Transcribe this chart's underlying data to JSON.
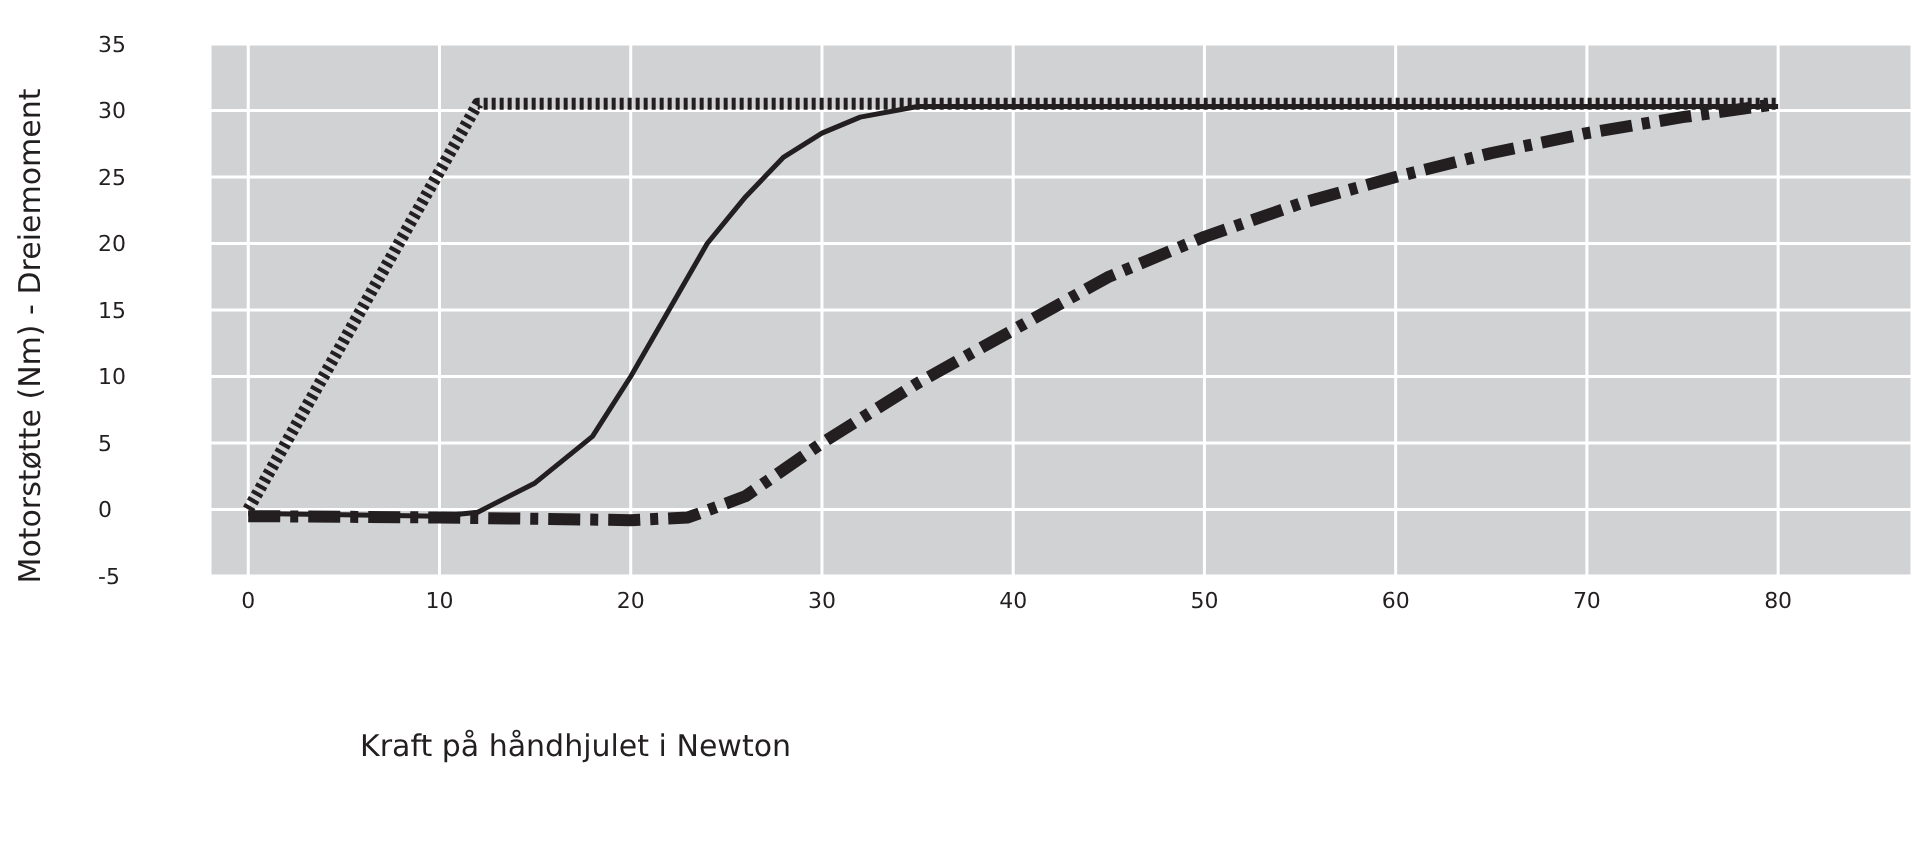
{
  "chart_data": {
    "type": "line",
    "xlabel": "Kraft på håndhjulet i Newton",
    "ylabel": "Motorstøtte (Nm) - Dreiemoment",
    "xlim": [
      -2,
      87
    ],
    "xticks": [
      0,
      10,
      20,
      30,
      40,
      50,
      60,
      70,
      80
    ],
    "ylim": [
      -5,
      35
    ],
    "yticks": [
      -5,
      0,
      5,
      10,
      15,
      20,
      25,
      30,
      35
    ],
    "grid": true,
    "marker": "none",
    "series": [
      {
        "color": "#231f20",
        "line_style": "dotted",
        "x": [
          0,
          12,
          80
        ],
        "values": [
          0,
          30.5,
          30.5
        ]
      },
      {
        "color": "#231f20",
        "line_style": "solid",
        "x": [
          0,
          5,
          10,
          12,
          15,
          18,
          20,
          22,
          24,
          26,
          28,
          30,
          32,
          35,
          80
        ],
        "values": [
          -0.3,
          -0.4,
          -0.5,
          -0.2,
          2,
          5.5,
          10,
          15,
          20,
          23.5,
          26.5,
          28.3,
          29.5,
          30.3,
          30.3
        ]
      },
      {
        "color": "#231f20",
        "line_style": "dashdot",
        "x": [
          0,
          10,
          20,
          23,
          26,
          30,
          35,
          40,
          45,
          50,
          55,
          60,
          65,
          70,
          75,
          80
        ],
        "values": [
          -0.5,
          -0.6,
          -0.8,
          -0.6,
          1,
          5,
          9.5,
          13.5,
          17.5,
          20.5,
          23,
          25,
          26.8,
          28.3,
          29.5,
          30.5
        ]
      }
    ]
  }
}
